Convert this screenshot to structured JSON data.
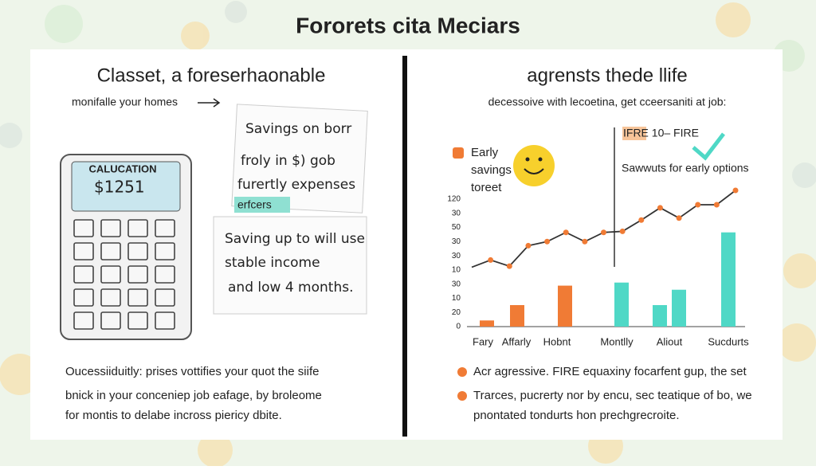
{
  "title": "Fororets cita Meciars",
  "left": {
    "heading": "Classet, a foreserhaonable",
    "caption": "monifalle your homes",
    "calculator": {
      "label": "CALUCATION",
      "display": "$1251"
    },
    "note1": [
      "Savings on borr",
      "froly in $) gob",
      "furertly expenses"
    ],
    "sticker": "erfcers",
    "note2": [
      "Saving up to will use",
      "stable income",
      "and low 4 months."
    ],
    "paragraph": [
      "Oucessiiduitly: prises vottifies your quot the siife",
      "bnick in your conceniep job eafage, by broleome",
      "for montis to delabe incross piericy dbite."
    ]
  },
  "right": {
    "heading": "agrensts thede llife",
    "subtitle": "decessoive with lecoetina, get cceersaniti at job:",
    "legend": [
      "Early",
      "savings",
      "toreet"
    ],
    "marker_label": "IFRE 10– FIRE",
    "annotation": "Sawwuts for early options",
    "chart": {
      "ylim": [
        0,
        140
      ],
      "ytick_labels": [
        "120",
        "30",
        "50",
        "30",
        "30",
        "10",
        "30",
        "10",
        "20",
        "0"
      ],
      "categories": [
        "Fary",
        "Affarly",
        "Hobnt",
        "Montlly",
        "Aliout",
        "Sucdurts"
      ],
      "bars": {
        "values": [
          6,
          21,
          40,
          43,
          21,
          36,
          92
        ],
        "colors": [
          "#f07b35",
          "#f07b35",
          "#f07b35",
          "#4fd8c6",
          "#4fd8c6",
          "#4fd8c6",
          "#4fd8c6"
        ]
      },
      "line": {
        "values": [
          58,
          65,
          59,
          79,
          83,
          92,
          83,
          92,
          93,
          104,
          116,
          106,
          119,
          119,
          133
        ],
        "color": "#333333",
        "marker_color": "#f07b35"
      }
    },
    "bullets": [
      [
        "Acr agressive. FIRE equaxiny focarfent gup, the set"
      ],
      [
        "Trarces, pucrerty nor by encu, sec teatique of bo, we",
        "pnontated tondurts hon prechgrecroite."
      ]
    ]
  }
}
